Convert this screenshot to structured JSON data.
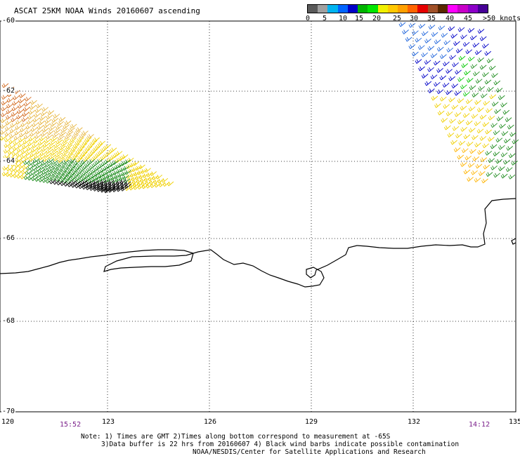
{
  "header": {
    "title": "ASCAT 25KM NOAA Winds 20160607 ascending"
  },
  "colorbar": {
    "colors": [
      "#5a5a5a",
      "#a0a0a0",
      "#00b4f0",
      "#0064ff",
      "#0000c8",
      "#00b400",
      "#00e600",
      "#f0f000",
      "#ffc800",
      "#ffa000",
      "#ff6400",
      "#e60000",
      "#a05028",
      "#5a2800",
      "#ff00ff",
      "#c800c8",
      "#8c00c8",
      "#460096"
    ],
    "labels": [
      "0",
      "5",
      "10",
      "15",
      "20",
      "25",
      "30",
      "35",
      "40",
      "45",
      ">50 knots"
    ]
  },
  "map": {
    "lat_labels": [
      "-60",
      "-62",
      "-64",
      "-66",
      "-68",
      "-70"
    ],
    "lon_labels": [
      "120",
      "123",
      "126",
      "129",
      "132",
      "135"
    ],
    "times": [
      "15:52",
      "14:12"
    ]
  },
  "notes": {
    "line1": "Note: 1) Times are GMT 2)Times along bottom correspond to measurement at -65S",
    "line2": "3)Data buffer is 22 hrs from 20160607 4) Black wind barbs indicate possible contamination",
    "line3": "NOAA/NESDIS/Center for Satellite Applications and Research"
  }
}
